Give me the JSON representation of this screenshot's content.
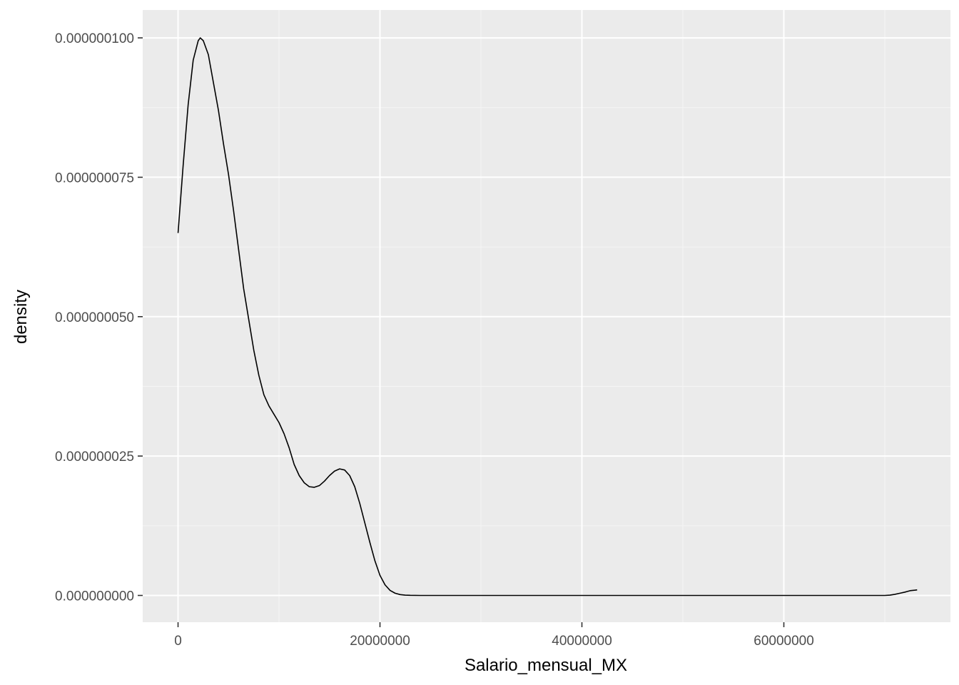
{
  "chart_data": {
    "type": "line",
    "xlabel": "Salario_mensual_MX",
    "ylabel": "density",
    "xlim": [
      -3500000,
      76500000
    ],
    "ylim": [
      -4.8e-09,
      1.05e-07
    ],
    "x_ticks": [
      0,
      20000000,
      40000000,
      60000000
    ],
    "x_tick_labels": [
      "0",
      "20000000",
      "40000000",
      "60000000"
    ],
    "y_ticks": [
      0,
      2.5e-08,
      5e-08,
      7.5e-08,
      1e-07
    ],
    "y_tick_labels": [
      "0.000000000",
      "0.000000025",
      "0.000000050",
      "0.000000075",
      "0.000000100"
    ],
    "grid": true,
    "series": [
      {
        "x": [
          0,
          500000,
          1000000,
          1500000,
          2000000,
          2200000,
          2500000,
          3000000,
          3500000,
          4000000,
          4500000,
          5000000,
          5500000,
          6000000,
          6500000,
          7000000,
          7500000,
          8000000,
          8500000,
          9000000,
          9500000,
          10000000,
          10500000,
          11000000,
          11500000,
          12000000,
          12500000,
          13000000,
          13500000,
          14000000,
          14500000,
          15000000,
          15500000,
          16000000,
          16500000,
          17000000,
          17500000,
          18000000,
          18500000,
          19000000,
          19500000,
          20000000,
          20500000,
          21000000,
          21500000,
          22000000,
          22500000,
          23000000,
          24000000,
          30000000,
          40000000,
          50000000,
          60000000,
          70000000,
          70500000,
          71000000,
          71500000,
          72000000,
          72500000,
          73000000,
          73200000
        ],
        "y": [
          6.5e-08,
          7.7e-08,
          8.8e-08,
          9.6e-08,
          9.95e-08,
          1e-07,
          9.95e-08,
          9.7e-08,
          9.2e-08,
          8.7e-08,
          8.1e-08,
          7.55e-08,
          6.9e-08,
          6.2e-08,
          5.5e-08,
          4.95e-08,
          4.4e-08,
          3.95e-08,
          3.6e-08,
          3.4e-08,
          3.25e-08,
          3.1e-08,
          2.9e-08,
          2.65e-08,
          2.35e-08,
          2.15e-08,
          2.02e-08,
          1.95e-08,
          1.94e-08,
          1.97e-08,
          2.05e-08,
          2.15e-08,
          2.23e-08,
          2.27e-08,
          2.25e-08,
          2.15e-08,
          1.95e-08,
          1.65e-08,
          1.3e-08,
          9.5e-09,
          6.2e-09,
          3.6e-09,
          1.9e-09,
          9e-10,
          4e-10,
          1.5e-10,
          6e-11,
          2e-11,
          0,
          0,
          0,
          0,
          0,
          0,
          5e-11,
          2e-10,
          4e-10,
          6e-10,
          8.5e-10,
          9.5e-10,
          1e-09
        ]
      }
    ]
  },
  "colors": {
    "panel_background": "#ebebeb",
    "grid_major": "#ffffff",
    "grid_minor": "#f5f5f5",
    "line": "#000000",
    "tick_text": "#4d4d4d",
    "tick_mark": "#333333"
  }
}
